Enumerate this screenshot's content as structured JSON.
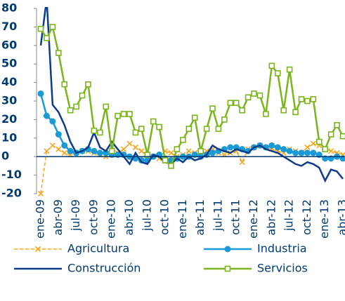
{
  "chart_data": {
    "type": "line",
    "categories": [
      "ene-09",
      null,
      null,
      "abr-09",
      null,
      null,
      "jul-09",
      null,
      null,
      "oct-09",
      null,
      null,
      "ene-10",
      null,
      null,
      "abr-10",
      null,
      null,
      "jul-10",
      null,
      null,
      "oct-10",
      null,
      null,
      "ene-11",
      null,
      null,
      "abr-11",
      null,
      null,
      "jul-11",
      null,
      null,
      "oct-11",
      null,
      null,
      "ene-12",
      null,
      null,
      "abr-12",
      null,
      null,
      "jul-12",
      null,
      null,
      "oct-12",
      null,
      null,
      "ene-13",
      null,
      null,
      "abr-13"
    ],
    "series": [
      {
        "name": "Agricultura",
        "color": "#f5a623",
        "dashed": true,
        "marker": "x",
        "values": [
          -20,
          3,
          6,
          4,
          2,
          1,
          2,
          3,
          3,
          2,
          1,
          0,
          1,
          2,
          4,
          7,
          5,
          3,
          1,
          0,
          -1,
          3,
          2,
          0,
          1,
          3,
          2,
          1,
          3,
          4,
          2,
          1,
          2,
          3,
          -3,
          4,
          5,
          6,
          5,
          4,
          3,
          2,
          4,
          3,
          2,
          5,
          7,
          6,
          4,
          3,
          2,
          1
        ]
      },
      {
        "name": "Industria",
        "color": "#1a9ad6",
        "dashed": false,
        "marker": "circle",
        "values": [
          34,
          22,
          19,
          12,
          6,
          3,
          2,
          3,
          4,
          3,
          2,
          2,
          1,
          1,
          1,
          0,
          -1,
          -2,
          -2,
          0,
          1,
          -1,
          -2,
          -1,
          0,
          0,
          1,
          0,
          1,
          2,
          3,
          4,
          5,
          5,
          4,
          3,
          5,
          6,
          5,
          6,
          5,
          4,
          3,
          2,
          2,
          2,
          2,
          1,
          -1,
          -1,
          0,
          -1
        ]
      },
      {
        "name": "Construcción",
        "color": "#0d3c8c",
        "dashed": false,
        "marker": "none",
        "values": [
          60,
          85,
          28,
          24,
          17,
          8,
          2,
          3,
          5,
          13,
          5,
          3,
          8,
          4,
          0,
          -4,
          2,
          -3,
          -4,
          1,
          0,
          -3,
          -4,
          -1,
          -3,
          0,
          -2,
          -1,
          1,
          6,
          4,
          3,
          2,
          4,
          3,
          2,
          5,
          6,
          4,
          3,
          2,
          0,
          -2,
          -4,
          -5,
          -3,
          -4,
          -6,
          -13,
          -7,
          -8,
          -12
        ]
      },
      {
        "name": "Servicios",
        "color": "#7ab51d",
        "dashed": false,
        "marker": "square",
        "values": [
          69,
          64,
          70,
          56,
          39,
          25,
          27,
          33,
          39,
          14,
          13,
          27,
          3,
          22,
          23,
          23,
          13,
          15,
          1,
          19,
          16,
          -2,
          -5,
          4,
          9,
          15,
          21,
          3,
          15,
          26,
          15,
          20,
          29,
          29,
          25,
          32,
          34,
          33,
          23,
          49,
          45,
          25,
          47,
          24,
          31,
          30,
          31,
          8,
          4,
          12,
          17,
          11
        ]
      }
    ],
    "ylim": [
      -20,
      80
    ],
    "yticks": [
      -20,
      -10,
      0,
      10,
      20,
      30,
      40,
      50,
      60,
      70,
      80
    ],
    "grid": false,
    "legend": "bottom"
  }
}
